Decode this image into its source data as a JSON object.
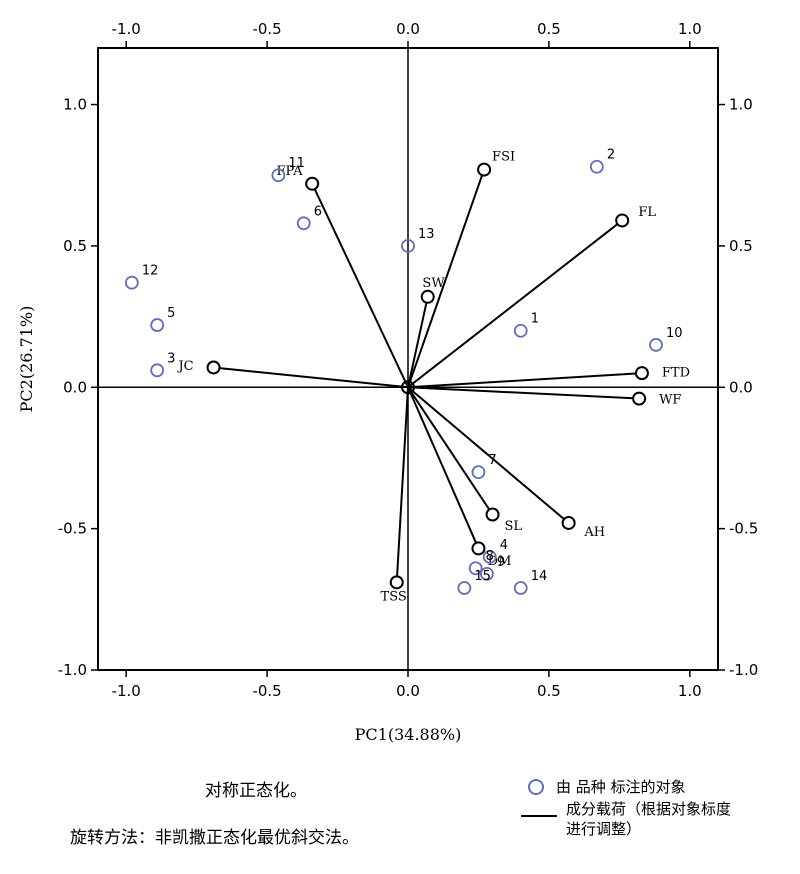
{
  "chart_data": {
    "type": "scatter",
    "subtype": "biplot",
    "xlabel": "PC1(34.88%)",
    "ylabel": "PC2(26.71%)",
    "xlim": [
      -1.1,
      1.1
    ],
    "ylim": [
      -1.0,
      1.2
    ],
    "xticks": [
      -1.0,
      -0.5,
      0.0,
      0.5,
      1.0
    ],
    "yticks": [
      -1.0,
      -0.5,
      0.0,
      0.5,
      1.0
    ],
    "xtick_labels": [
      "-1.0",
      "-0.5",
      "0.0",
      "0.5",
      "1.0"
    ],
    "ytick_labels": [
      "-1.0",
      "-0.5",
      "0.0",
      "0.5",
      "1.0"
    ],
    "grid": false,
    "point_color": "#6070b8",
    "points": [
      {
        "label": "1",
        "x": 0.4,
        "y": 0.2
      },
      {
        "label": "2",
        "x": 0.67,
        "y": 0.78
      },
      {
        "label": "3",
        "x": -0.89,
        "y": 0.06
      },
      {
        "label": "4",
        "x": 0.29,
        "y": -0.6
      },
      {
        "label": "5",
        "x": -0.89,
        "y": 0.22
      },
      {
        "label": "6",
        "x": -0.37,
        "y": 0.58
      },
      {
        "label": "7",
        "x": 0.25,
        "y": -0.3
      },
      {
        "label": "8",
        "x": 0.24,
        "y": -0.64
      },
      {
        "label": "9",
        "x": 0.28,
        "y": -0.66
      },
      {
        "label": "10",
        "x": 0.88,
        "y": 0.15
      },
      {
        "label": "11",
        "x": -0.46,
        "y": 0.75
      },
      {
        "label": "12",
        "x": -0.98,
        "y": 0.37
      },
      {
        "label": "13",
        "x": 0.0,
        "y": 0.5
      },
      {
        "label": "14",
        "x": 0.4,
        "y": -0.71
      },
      {
        "label": "15",
        "x": 0.2,
        "y": -0.71
      }
    ],
    "loadings": [
      {
        "label": "FPA",
        "x": -0.34,
        "y": 0.72
      },
      {
        "label": "FSI",
        "x": 0.27,
        "y": 0.77
      },
      {
        "label": "FL",
        "x": 0.76,
        "y": 0.59
      },
      {
        "label": "SW",
        "x": 0.07,
        "y": 0.32
      },
      {
        "label": "JC",
        "x": -0.69,
        "y": 0.07
      },
      {
        "label": "FTD",
        "x": 0.83,
        "y": 0.05
      },
      {
        "label": "WF",
        "x": 0.82,
        "y": -0.04
      },
      {
        "label": "AH",
        "x": 0.57,
        "y": -0.48
      },
      {
        "label": "SL",
        "x": 0.3,
        "y": -0.45
      },
      {
        "label": "DM",
        "x": 0.25,
        "y": -0.57
      },
      {
        "label": "TSS",
        "x": -0.04,
        "y": -0.69
      }
    ]
  },
  "notes": {
    "line1": "对称正态化。",
    "line2": "旋转方法：非凯撒正态化最优斜交法。"
  },
  "legend": {
    "points_label": "由 品种 标注的对象",
    "loadings_label_1": "成分载荷（根据对象标度",
    "loadings_label_2": "进行调整）"
  }
}
